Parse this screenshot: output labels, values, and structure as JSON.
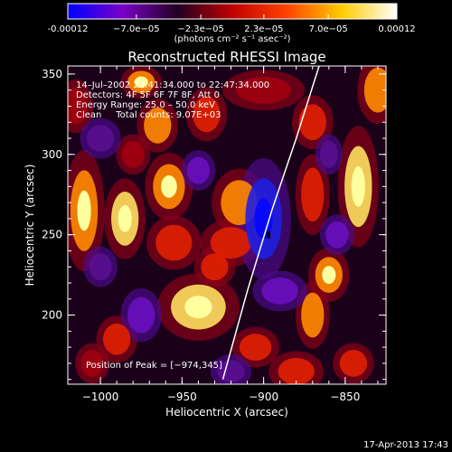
{
  "chart_data": {
    "type": "heatmap",
    "title": "Reconstructed RHESSI Image",
    "xlabel": "Heliocentric X (arcsec)",
    "ylabel": "Heliocentric Y (arcsec)",
    "xlim": [
      -1020,
      -825
    ],
    "ylim": [
      157,
      355
    ],
    "x_ticks": [
      -1000,
      -950,
      -900,
      -850
    ],
    "x_tick_labels": [
      "−1000",
      "−950",
      "−900",
      "−850"
    ],
    "y_ticks": [
      200,
      250,
      300,
      350
    ],
    "y_tick_labels": [
      "200",
      "250",
      "300",
      "350"
    ],
    "colorbar": {
      "range": [
        -0.00012,
        0.00012
      ],
      "ticks": [
        -0.00012,
        -7e-05,
        -2.3e-05,
        2.3e-05,
        7e-05,
        0.00012
      ],
      "tick_labels": [
        "-0.00012",
        "−7.0e−05",
        "−2.3e−05",
        "2.3e−05",
        "7.0e−05",
        "0.00012"
      ],
      "units_label": "(photons cm⁻² s⁻¹ asec⁻²)",
      "colors": [
        "#0000ff",
        "#7a00c8",
        "#220022",
        "#c00000",
        "#ff4400",
        "#ffcc00",
        "#ffffff"
      ]
    },
    "annotations": {
      "time": "14–Jul–2002 22:41:34.000 to 22:47:34.000",
      "detectors": "Detectors: 4F 5F 6F 7F 8F, Att 0",
      "energy": "Energy Range: 25.0 – 50.0 keV",
      "clean": "Clean     Total counts: 9.07E+03",
      "peak": "Position of Peak = [−974,345]"
    },
    "peak_position": [
      -974,
      345
    ],
    "limb_curve": [
      [
        -925,
        160
      ],
      [
        -910,
        215
      ],
      [
        -895,
        265
      ],
      [
        -880,
        310
      ],
      [
        -866,
        355
      ]
    ],
    "blobs": [
      {
        "x": -985,
        "y": 260,
        "sx": 6,
        "sy": 12,
        "v": 0.9
      },
      {
        "x": -1010,
        "y": 265,
        "sx": 6,
        "sy": 18,
        "v": 0.85
      },
      {
        "x": -940,
        "y": 205,
        "sx": 12,
        "sy": 10,
        "v": 1.0
      },
      {
        "x": -958,
        "y": 280,
        "sx": 7,
        "sy": 10,
        "v": 0.8
      },
      {
        "x": -965,
        "y": 318,
        "sx": 6,
        "sy": 8,
        "v": 0.75
      },
      {
        "x": -955,
        "y": 245,
        "sx": 8,
        "sy": 8,
        "v": 0.7
      },
      {
        "x": -990,
        "y": 185,
        "sx": 6,
        "sy": 7,
        "v": 0.6
      },
      {
        "x": -1005,
        "y": 170,
        "sx": 5,
        "sy": 6,
        "v": 0.55
      },
      {
        "x": -975,
        "y": 345,
        "sx": 6,
        "sy": 5,
        "v": 0.8
      },
      {
        "x": -915,
        "y": 270,
        "sx": 8,
        "sy": 10,
        "v": 0.75
      },
      {
        "x": -920,
        "y": 245,
        "sx": 9,
        "sy": 7,
        "v": 0.7
      },
      {
        "x": -930,
        "y": 230,
        "sx": 6,
        "sy": 6,
        "v": 0.6
      },
      {
        "x": -905,
        "y": 180,
        "sx": 7,
        "sy": 6,
        "v": 0.7
      },
      {
        "x": -880,
        "y": 165,
        "sx": 8,
        "sy": 6,
        "v": 0.7
      },
      {
        "x": -870,
        "y": 200,
        "sx": 5,
        "sy": 10,
        "v": 0.75
      },
      {
        "x": -860,
        "y": 225,
        "sx": 6,
        "sy": 8,
        "v": 0.8
      },
      {
        "x": -870,
        "y": 275,
        "sx": 5,
        "sy": 12,
        "v": 0.7
      },
      {
        "x": -870,
        "y": 320,
        "sx": 6,
        "sy": 8,
        "v": 0.65
      },
      {
        "x": -842,
        "y": 280,
        "sx": 6,
        "sy": 18,
        "v": 0.95
      },
      {
        "x": -830,
        "y": 340,
        "sx": 6,
        "sy": 10,
        "v": 0.75
      },
      {
        "x": -845,
        "y": 170,
        "sx": 6,
        "sy": 6,
        "v": 0.6
      },
      {
        "x": -900,
        "y": 340,
        "sx": 12,
        "sy": 6,
        "v": 0.55
      },
      {
        "x": -935,
        "y": 325,
        "sx": 6,
        "sy": 8,
        "v": 0.6
      },
      {
        "x": -1015,
        "y": 330,
        "sx": 5,
        "sy": 8,
        "v": 0.5
      },
      {
        "x": -980,
        "y": 300,
        "sx": 5,
        "sy": 6,
        "v": 0.5
      },
      {
        "x": -900,
        "y": 260,
        "sx": 8,
        "sy": 18,
        "v": -1.0
      },
      {
        "x": -890,
        "y": 215,
        "sx": 8,
        "sy": 6,
        "v": -0.6
      },
      {
        "x": -940,
        "y": 290,
        "sx": 5,
        "sy": 6,
        "v": -0.5
      },
      {
        "x": -975,
        "y": 200,
        "sx": 6,
        "sy": 8,
        "v": -0.5
      },
      {
        "x": -1000,
        "y": 310,
        "sx": 6,
        "sy": 6,
        "v": -0.4
      },
      {
        "x": -855,
        "y": 250,
        "sx": 5,
        "sy": 6,
        "v": -0.5
      },
      {
        "x": -920,
        "y": 165,
        "sx": 6,
        "sy": 5,
        "v": -0.45
      },
      {
        "x": -860,
        "y": 300,
        "sx": 4,
        "sy": 6,
        "v": -0.4
      },
      {
        "x": -1000,
        "y": 230,
        "sx": 5,
        "sy": 6,
        "v": -0.4
      }
    ]
  },
  "footer": {
    "timestamp": "17-Apr-2013 17:43"
  }
}
